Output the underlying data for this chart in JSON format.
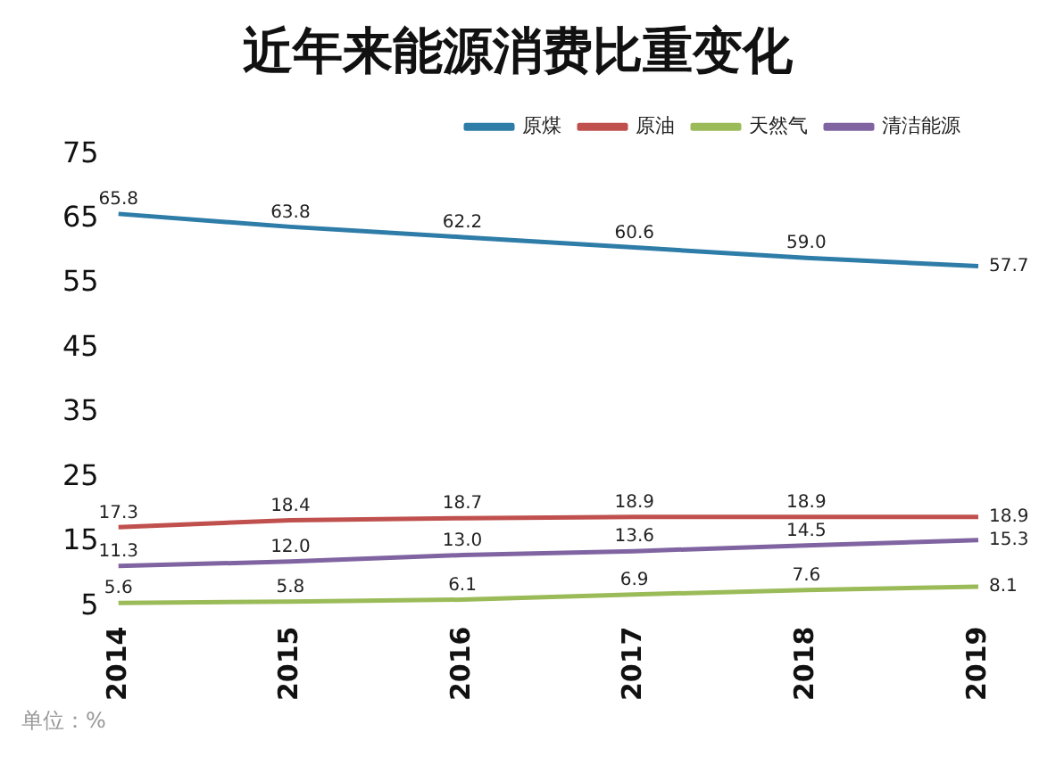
{
  "chart_data": {
    "type": "line",
    "title": "近年来能源消费比重变化",
    "categories": [
      "2014",
      "2015",
      "2016",
      "2017",
      "2018",
      "2019"
    ],
    "series": [
      {
        "name": "原煤",
        "color": "#2e7ca8",
        "values": [
          65.8,
          63.8,
          62.2,
          60.6,
          59.0,
          57.7
        ],
        "value_labels": [
          "65.8",
          "63.8",
          "62.2",
          "60.6",
          "59.0",
          "57.7"
        ]
      },
      {
        "name": "原油",
        "color": "#c0504d",
        "values": [
          17.3,
          18.4,
          18.7,
          18.9,
          18.9,
          18.9
        ],
        "value_labels": [
          "17.3",
          "18.4",
          "18.7",
          "18.9",
          "18.9",
          "18.9"
        ]
      },
      {
        "name": "天然气",
        "color": "#9bbb59",
        "values": [
          5.6,
          5.8,
          6.1,
          6.9,
          7.6,
          8.1
        ],
        "value_labels": [
          "5.6",
          "5.8",
          "6.1",
          "6.9",
          "7.6",
          "8.1"
        ]
      },
      {
        "name": "清洁能源",
        "color": "#8064a2",
        "values": [
          11.3,
          12.0,
          13.0,
          13.6,
          14.5,
          15.3
        ],
        "value_labels": [
          "11.3",
          "12.0",
          "13.0",
          "13.6",
          "14.5",
          "15.3"
        ]
      }
    ],
    "ylim": [
      5,
      75
    ],
    "yticks": [
      5,
      15,
      25,
      35,
      45,
      55,
      65,
      75
    ],
    "grid": false,
    "legend": "top right",
    "marker": "none",
    "line_style": "solid",
    "annotations": [
      "单位：%"
    ]
  }
}
